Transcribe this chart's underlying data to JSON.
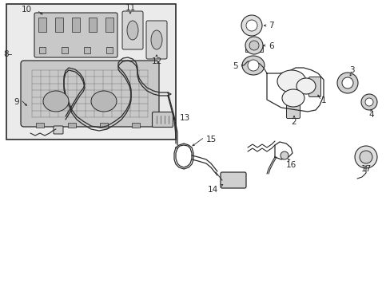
{
  "bg_color": "#ffffff",
  "line_color": "#2a2a2a",
  "box_fill": "#e8e8e8",
  "fs": 7.5,
  "arrow_scale": 5,
  "lw_main": 0.7,
  "lw_thin": 0.5,
  "lw_thick": 1.0
}
